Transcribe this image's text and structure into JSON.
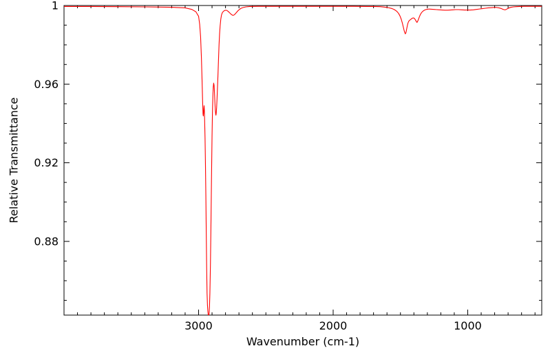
{
  "figure": {
    "background": "#ffffff",
    "axis_color": "#000000",
    "text_color": "#000000"
  },
  "chart_data": {
    "type": "line",
    "title": "",
    "xlabel": "Wavenumber (cm-1)",
    "ylabel": "Relative Transmittance",
    "legend": "none",
    "grid": false,
    "x_axis": {
      "min": 450,
      "max": 4000,
      "reversed": true,
      "major_ticks": [
        3000,
        2000,
        1000
      ],
      "major_tick_labels": [
        "3000",
        "2000",
        "1000"
      ],
      "minor_tick_step": 100
    },
    "y_axis": {
      "min": 0.8425,
      "max": 1.0,
      "major_ticks": [
        0.88,
        0.92,
        0.96,
        1.0
      ],
      "major_tick_labels": [
        "0.88",
        "0.92",
        "0.96",
        "1"
      ],
      "minor_tick_step": 0.01
    },
    "series": [
      {
        "name": "relative-transmittance",
        "color": "#ff0000",
        "points": [
          [
            4000,
            0.9995
          ],
          [
            3800,
            0.9995
          ],
          [
            3600,
            0.9994
          ],
          [
            3400,
            0.9993
          ],
          [
            3200,
            0.9991
          ],
          [
            3100,
            0.9988
          ],
          [
            3050,
            0.998
          ],
          [
            3020,
            0.9968
          ],
          [
            3000,
            0.9945
          ],
          [
            2992,
            0.9905
          ],
          [
            2985,
            0.984
          ],
          [
            2979,
            0.9735
          ],
          [
            2974,
            0.9615
          ],
          [
            2970,
            0.951
          ],
          [
            2967,
            0.9448
          ],
          [
            2965,
            0.9438
          ],
          [
            2963,
            0.9452
          ],
          [
            2961,
            0.9478
          ],
          [
            2959,
            0.949
          ],
          [
            2957,
            0.9468
          ],
          [
            2955,
            0.9415
          ],
          [
            2952,
            0.9325
          ],
          [
            2949,
            0.9195
          ],
          [
            2946,
            0.9035
          ],
          [
            2943,
            0.8845
          ],
          [
            2940,
            0.8665
          ],
          [
            2937,
            0.8535
          ],
          [
            2934,
            0.8475
          ],
          [
            2931,
            0.8445
          ],
          [
            2928,
            0.8425
          ],
          [
            2925,
            0.8408
          ],
          [
            2922,
            0.8432
          ],
          [
            2919,
            0.8468
          ],
          [
            2916,
            0.8535
          ],
          [
            2912,
            0.868
          ],
          [
            2908,
            0.889
          ],
          [
            2904,
            0.9125
          ],
          [
            2900,
            0.9335
          ],
          [
            2897,
            0.9455
          ],
          [
            2894,
            0.9535
          ],
          [
            2891,
            0.9585
          ],
          [
            2888,
            0.9605
          ],
          [
            2885,
            0.9595
          ],
          [
            2882,
            0.956
          ],
          [
            2879,
            0.951
          ],
          [
            2876,
            0.947
          ],
          [
            2873,
            0.9448
          ],
          [
            2871,
            0.9442
          ],
          [
            2869,
            0.9452
          ],
          [
            2866,
            0.948
          ],
          [
            2863,
            0.9525
          ],
          [
            2860,
            0.9575
          ],
          [
            2856,
            0.9645
          ],
          [
            2852,
            0.9725
          ],
          [
            2848,
            0.98
          ],
          [
            2844,
            0.9855
          ],
          [
            2840,
            0.9895
          ],
          [
            2835,
            0.993
          ],
          [
            2830,
            0.9951
          ],
          [
            2824,
            0.9963
          ],
          [
            2816,
            0.997
          ],
          [
            2808,
            0.9974
          ],
          [
            2800,
            0.9976
          ],
          [
            2790,
            0.9975
          ],
          [
            2780,
            0.997
          ],
          [
            2768,
            0.9962
          ],
          [
            2756,
            0.9954
          ],
          [
            2746,
            0.995
          ],
          [
            2738,
            0.9951
          ],
          [
            2728,
            0.9957
          ],
          [
            2718,
            0.9965
          ],
          [
            2708,
            0.9973
          ],
          [
            2696,
            0.998
          ],
          [
            2684,
            0.9986
          ],
          [
            2668,
            0.999
          ],
          [
            2648,
            0.9993
          ],
          [
            2620,
            0.9995
          ],
          [
            2560,
            0.9996
          ],
          [
            2450,
            0.9996
          ],
          [
            2300,
            0.9996
          ],
          [
            2150,
            0.9996
          ],
          [
            2000,
            0.9996
          ],
          [
            1850,
            0.9996
          ],
          [
            1750,
            0.9995
          ],
          [
            1700,
            0.9995
          ],
          [
            1650,
            0.9994
          ],
          [
            1620,
            0.9992
          ],
          [
            1590,
            0.9989
          ],
          [
            1565,
            0.9985
          ],
          [
            1545,
            0.9979
          ],
          [
            1528,
            0.9971
          ],
          [
            1514,
            0.996
          ],
          [
            1503,
            0.9946
          ],
          [
            1494,
            0.993
          ],
          [
            1486,
            0.9911
          ],
          [
            1479,
            0.9891
          ],
          [
            1473,
            0.9874
          ],
          [
            1468,
            0.9862
          ],
          [
            1464,
            0.9856
          ],
          [
            1460,
            0.986
          ],
          [
            1456,
            0.9872
          ],
          [
            1451,
            0.989
          ],
          [
            1446,
            0.9906
          ],
          [
            1441,
            0.9916
          ],
          [
            1436,
            0.9922
          ],
          [
            1430,
            0.9926
          ],
          [
            1424,
            0.9929
          ],
          [
            1417,
            0.9933
          ],
          [
            1410,
            0.9936
          ],
          [
            1403,
            0.9937
          ],
          [
            1396,
            0.9934
          ],
          [
            1390,
            0.9928
          ],
          [
            1384,
            0.9921
          ],
          [
            1380,
            0.9916
          ],
          [
            1377,
            0.9914
          ],
          [
            1374,
            0.9917
          ],
          [
            1370,
            0.9923
          ],
          [
            1365,
            0.9932
          ],
          [
            1359,
            0.9943
          ],
          [
            1352,
            0.9954
          ],
          [
            1344,
            0.9963
          ],
          [
            1335,
            0.997
          ],
          [
            1325,
            0.9975
          ],
          [
            1313,
            0.9979
          ],
          [
            1300,
            0.9981
          ],
          [
            1285,
            0.9982
          ],
          [
            1268,
            0.9981
          ],
          [
            1250,
            0.998
          ],
          [
            1230,
            0.9979
          ],
          [
            1210,
            0.9978
          ],
          [
            1190,
            0.9977
          ],
          [
            1170,
            0.9976
          ],
          [
            1150,
            0.9976
          ],
          [
            1130,
            0.9977
          ],
          [
            1110,
            0.9978
          ],
          [
            1090,
            0.9979
          ],
          [
            1068,
            0.9979
          ],
          [
            1046,
            0.9978
          ],
          [
            1024,
            0.9977
          ],
          [
            1002,
            0.9977
          ],
          [
            980,
            0.9977
          ],
          [
            958,
            0.9978
          ],
          [
            936,
            0.998
          ],
          [
            914,
            0.9982
          ],
          [
            892,
            0.9984
          ],
          [
            870,
            0.9986
          ],
          [
            848,
            0.9988
          ],
          [
            826,
            0.9989
          ],
          [
            804,
            0.999
          ],
          [
            786,
            0.999
          ],
          [
            768,
            0.9988
          ],
          [
            752,
            0.9985
          ],
          [
            740,
            0.9981
          ],
          [
            730,
            0.9979
          ],
          [
            722,
            0.9978
          ],
          [
            714,
            0.998
          ],
          [
            704,
            0.9984
          ],
          [
            692,
            0.9988
          ],
          [
            678,
            0.9991
          ],
          [
            660,
            0.9993
          ],
          [
            640,
            0.9994
          ],
          [
            615,
            0.9995
          ],
          [
            580,
            0.9996
          ],
          [
            520,
            0.9996
          ],
          [
            450,
            0.9996
          ]
        ]
      }
    ]
  }
}
